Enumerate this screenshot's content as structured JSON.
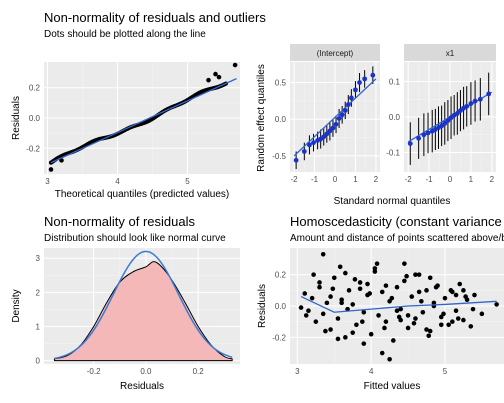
{
  "chart_data": [
    {
      "type": "scatter",
      "title": "Non-normality of residuals and outliers",
      "subtitle": "Dots should be plotted along the line",
      "xlabel": "Theoretical quantiles (predicted values)",
      "ylabel": "Residuals",
      "xlim": [
        2.95,
        5.75
      ],
      "ylim": [
        -0.37,
        0.37
      ],
      "xticks": [
        3,
        4,
        5
      ],
      "yticks": [
        -0.2,
        0.0,
        0.2
      ],
      "ytick_labels": [
        "-0.2",
        "0.0",
        "0.2"
      ],
      "line": {
        "x": [
          3.05,
          5.7
        ],
        "y": [
          -0.295,
          0.26
        ]
      },
      "point_color": "#000000",
      "line_color": "#3366cc",
      "grid": true,
      "panel_bg": "#ebebeb"
    },
    {
      "type": "scatter",
      "title": "",
      "subtitle": "",
      "xlabel": "Standard normal quantiles",
      "ylabel": "Random effect quantiles",
      "facets": [
        {
          "strip": "(Intercept)",
          "xlim": [
            -2.2,
            2.2
          ],
          "ylim": [
            -0.72,
            0.78
          ],
          "xticks": [
            -2,
            -1,
            0,
            1,
            2
          ],
          "yticks": [
            -0.5,
            0.0,
            0.5
          ],
          "ytick_labels": [
            "-0.5",
            "0.0",
            "0.5"
          ],
          "x": [
            -1.9,
            -1.5,
            -1.25,
            -1.05,
            -0.85,
            -0.7,
            -0.55,
            -0.4,
            -0.25,
            -0.1,
            0.05,
            0.2,
            0.35,
            0.5,
            0.65,
            0.8,
            1.0,
            1.2,
            1.45,
            1.85
          ],
          "y": [
            -0.56,
            -0.44,
            -0.35,
            -0.32,
            -0.29,
            -0.27,
            -0.24,
            -0.2,
            -0.16,
            -0.12,
            -0.07,
            0.01,
            0.06,
            0.12,
            0.2,
            0.29,
            0.4,
            0.5,
            0.55,
            0.6
          ],
          "ci": [
            0.12,
            0.12,
            0.13,
            0.12,
            0.12,
            0.13,
            0.12,
            0.12,
            0.13,
            0.12,
            0.12,
            0.13,
            0.12,
            0.12,
            0.13,
            0.12,
            0.12,
            0.13,
            0.12,
            0.12
          ],
          "fit": {
            "x": [
              -2.0,
              2.0
            ],
            "y": [
              -0.5,
              0.55
            ]
          }
        },
        {
          "strip": "x1",
          "xlim": [
            -2.2,
            2.2
          ],
          "ylim": [
            -0.155,
            0.155
          ],
          "xticks": [
            -2,
            -1,
            0,
            1,
            2
          ],
          "yticks": [
            -0.1,
            0.0,
            0.1
          ],
          "ytick_labels": [
            "-0.1",
            "0.0",
            "0.1"
          ],
          "x": [
            -1.9,
            -1.5,
            -1.25,
            -1.05,
            -0.85,
            -0.7,
            -0.55,
            -0.4,
            -0.25,
            -0.1,
            0.05,
            0.2,
            0.35,
            0.5,
            0.65,
            0.8,
            1.0,
            1.2,
            1.45,
            1.85
          ],
          "y": [
            -0.075,
            -0.06,
            -0.05,
            -0.045,
            -0.04,
            -0.035,
            -0.03,
            -0.025,
            -0.018,
            -0.01,
            -0.002,
            0.005,
            0.01,
            0.018,
            0.025,
            0.03,
            0.038,
            0.045,
            0.05,
            0.065
          ],
          "ci": [
            0.06,
            0.058,
            0.06,
            0.057,
            0.06,
            0.058,
            0.06,
            0.057,
            0.06,
            0.058,
            0.06,
            0.057,
            0.06,
            0.058,
            0.06,
            0.057,
            0.06,
            0.058,
            0.06,
            0.06
          ],
          "fit": {
            "x": [
              -2.0,
              2.0
            ],
            "y": [
              -0.07,
              0.07
            ]
          }
        }
      ],
      "strip_bg": "#d9d9d9",
      "point_color": "#000000",
      "errorbar_color": "#000000",
      "dot_color": "#1a33cc",
      "line_color": "#3366cc"
    },
    {
      "type": "area",
      "title": "Non-normality of residuals",
      "subtitle": "Distribution should look like normal curve",
      "xlabel": "Residuals",
      "ylabel": "Density",
      "xlim": [
        -0.39,
        0.36
      ],
      "ylim": [
        -0.1,
        3.3
      ],
      "xticks": [
        -0.2,
        0.0,
        0.2
      ],
      "xtick_labels": [
        "-0.2",
        "0.0",
        "0.2"
      ],
      "yticks": [
        0,
        1,
        2,
        3
      ],
      "density_x": [
        -0.35,
        -0.3,
        -0.25,
        -0.2,
        -0.15,
        -0.1,
        -0.05,
        0.0,
        0.03,
        0.06,
        0.1,
        0.15,
        0.2,
        0.25,
        0.3,
        0.33
      ],
      "density_y": [
        0.05,
        0.15,
        0.45,
        1.0,
        1.7,
        2.3,
        2.6,
        2.75,
        2.9,
        2.75,
        2.35,
        1.7,
        1.0,
        0.45,
        0.12,
        0.05
      ],
      "fill_color": "#f4b8b8",
      "curve_color": "#000000",
      "normal_curve_color": "#3a7bd5",
      "normal_mean": 0.0,
      "normal_sd": 0.125,
      "normal_peak": 3.2
    },
    {
      "type": "scatter",
      "title": "Homoscedasticity (constant variance of residuals)",
      "subtitle": "Amount and distance of points scattered above/below line is equal or randomly spread",
      "xlabel": "Fitted values",
      "ylabel": "Residuals",
      "xlim": [
        2.9,
        5.8
      ],
      "ylim": [
        -0.37,
        0.37
      ],
      "xticks": [
        3,
        4,
        5
      ],
      "yticks": [
        -0.2,
        0.0,
        0.2
      ],
      "ytick_labels": [
        "-0.2",
        "0.0",
        "0.2"
      ],
      "x": [
        3.05,
        3.1,
        3.15,
        3.2,
        3.25,
        3.3,
        3.35,
        3.4,
        3.45,
        3.5,
        3.55,
        3.6,
        3.65,
        3.7,
        3.75,
        3.8,
        3.85,
        3.9,
        3.95,
        4.0,
        4.05,
        4.1,
        4.15,
        4.2,
        4.25,
        4.3,
        4.35,
        4.4,
        4.45,
        4.5,
        4.55,
        4.6,
        4.65,
        4.7,
        4.75,
        4.8,
        4.85,
        4.9,
        4.95,
        5.0,
        5.05,
        5.1,
        5.15,
        5.2,
        5.25,
        5.3,
        5.35,
        5.4,
        5.5,
        5.7,
        3.12,
        3.22,
        3.38,
        3.48,
        3.58,
        3.68,
        3.78,
        3.88,
        3.98,
        4.08,
        4.18,
        4.28,
        4.38,
        4.48,
        4.58,
        4.68,
        4.78,
        4.88,
        4.98,
        5.08,
        5.18,
        5.28,
        5.38,
        3.3,
        3.6,
        3.9,
        4.2,
        4.5,
        4.8,
        5.1,
        3.45,
        3.75,
        4.05,
        4.35,
        4.65,
        4.95,
        5.25,
        3.55,
        3.95,
        4.4,
        4.85,
        5.15,
        3.65,
        4.25,
        4.75,
        3.35,
        4.6,
        4.15,
        3.85,
        4.45
      ],
      "y": [
        -0.01,
        0.08,
        -0.03,
        0.05,
        -0.1,
        0.12,
        -0.05,
        0.02,
        -0.15,
        0.18,
        -0.08,
        0.04,
        -0.2,
        0.1,
        0.01,
        -0.12,
        0.15,
        -0.04,
        0.07,
        -0.18,
        0.22,
        -0.06,
        0.09,
        -0.1,
        0.03,
        -0.22,
        0.12,
        -0.02,
        0.16,
        -0.14,
        0.06,
        -0.08,
        0.2,
        -0.04,
        0.1,
        -0.16,
        0.02,
        0.13,
        -0.07,
        0.05,
        -0.12,
        0.09,
        -0.03,
        0.14,
        -0.09,
        0.04,
        -0.13,
        0.07,
        -0.05,
        0.01,
        -0.06,
        0.2,
        -0.16,
        0.11,
        0.25,
        -0.02,
        0.17,
        -0.1,
        0.08,
        0.27,
        -0.14,
        0.05,
        -0.07,
        0.19,
        -0.11,
        0.03,
        -0.19,
        0.12,
        -0.05,
        0.1,
        -0.08,
        0.06,
        -0.02,
        0.15,
        0.02,
        -0.24,
        0.13,
        -0.06,
        0.18,
        -0.1,
        0.06,
        -0.17,
        0.24,
        -0.03,
        0.09,
        -0.12,
        0.1,
        -0.21,
        0.14,
        -0.09,
        0.0,
        0.07,
        0.21,
        -0.34,
        -0.15,
        0.33,
        0.2,
        -0.3,
        0.11,
        0.27
      ],
      "line": {
        "x": [
          3.05,
          3.5,
          4.0,
          4.5,
          5.0,
          5.7
        ],
        "y": [
          0.06,
          -0.04,
          -0.02,
          0.0,
          0.01,
          0.03
        ]
      },
      "point_color": "#000000",
      "line_color": "#3366cc"
    }
  ]
}
